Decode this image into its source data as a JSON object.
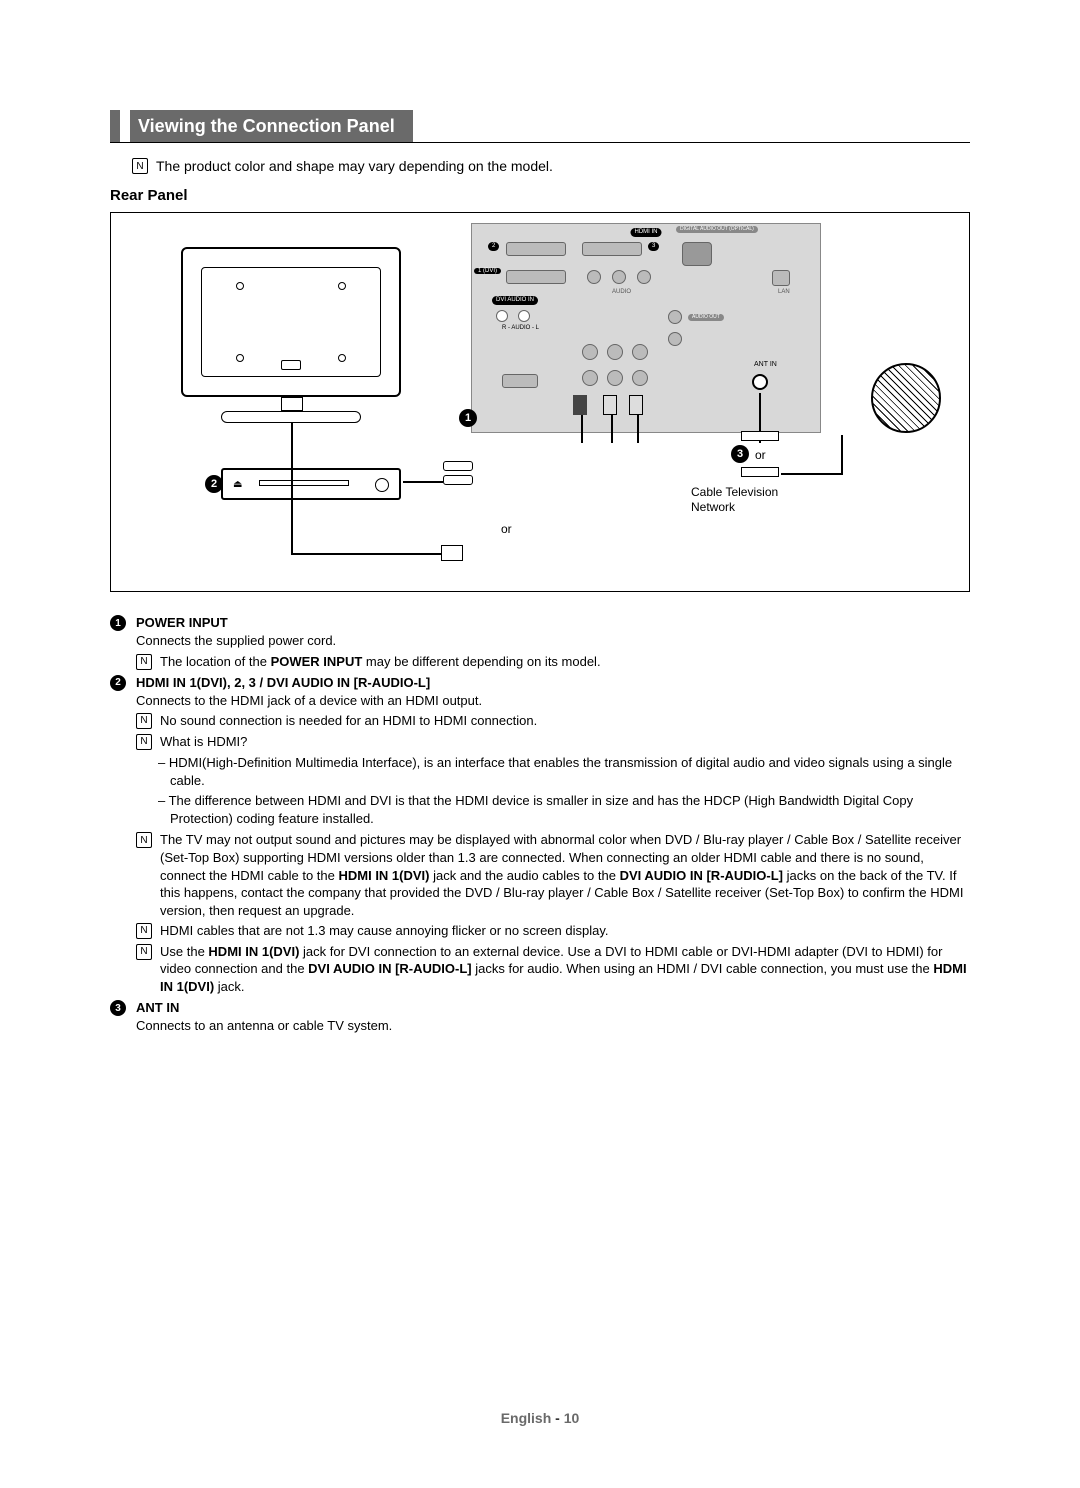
{
  "title": "Viewing the Connection Panel",
  "top_note_icon": "N",
  "top_note": "The product color and shape may vary depending on the model.",
  "subheading": "Rear Panel",
  "diagram": {
    "labels": {
      "hdmi_in": "HDMI IN",
      "dvi_audio_in": "DVI AUDIO IN",
      "digital_audio": "DIGITAL AUDIO OUT (OPTICAL)",
      "lan": "LAN",
      "ant_in": "ANT IN",
      "audio": "AUDIO",
      "audio_out": "AUDIO OUT",
      "ex_link": "EX-LINK",
      "port1": "1 (DVI)",
      "port2": "2",
      "port3": "3"
    },
    "cable_tv_line1": "Cable Television",
    "cable_tv_line2": "Network",
    "or": "or",
    "circles": {
      "one": "1",
      "two": "2",
      "three": "3"
    }
  },
  "items": [
    {
      "num": "1",
      "title": "POWER INPUT",
      "desc": "Connects the supplied power cord.",
      "notes": [
        {
          "icon": "N",
          "parts": [
            "The location of the ",
            {
              "b": "POWER INPUT"
            },
            " may be different depending on its model."
          ]
        }
      ]
    },
    {
      "num": "2",
      "title": "HDMI IN 1(DVI), 2, 3 / DVI AUDIO IN [R-AUDIO-L]",
      "desc": "Connects to the HDMI jack of a device with an HDMI output.",
      "notes": [
        {
          "icon": "N",
          "parts": [
            "No sound connection is needed for an HDMI to HDMI connection."
          ]
        },
        {
          "icon": "N",
          "parts": [
            "What is HDMI?"
          ],
          "bullets": [
            "HDMI(High-Definition Multimedia Interface), is an interface that enables the transmission of digital audio and video signals using a single cable.",
            "The difference between HDMI and DVI is that the HDMI device is smaller in size and has the HDCP (High Bandwidth Digital Copy Protection) coding feature installed."
          ]
        },
        {
          "icon": "N",
          "parts": [
            "The TV may not output sound and pictures may be displayed with abnormal color when DVD / Blu-ray player / Cable Box / Satellite receiver (Set-Top Box) supporting HDMI versions older than 1.3 are connected. When connecting an older HDMI cable and there is no sound, connect the HDMI cable to the ",
            {
              "b": "HDMI IN 1(DVI)"
            },
            " jack and the audio cables to the ",
            {
              "b": "DVI AUDIO IN [R-AUDIO-L]"
            },
            " jacks on the back of the TV. If this happens, contact the company that provided the DVD / Blu-ray player / Cable Box / Satellite receiver (Set-Top Box) to confirm the HDMI version, then request an upgrade."
          ]
        },
        {
          "icon": "N",
          "parts": [
            "HDMI cables that are not 1.3 may cause annoying flicker or no screen display."
          ]
        },
        {
          "icon": "N",
          "parts": [
            "Use the ",
            {
              "b": "HDMI IN 1(DVI)"
            },
            " jack for DVI connection to an external device. Use a DVI to HDMI cable or DVI-HDMI adapter (DVI to HDMI) for video connection and the ",
            {
              "b": "DVI AUDIO IN [R-AUDIO-L]"
            },
            " jacks for audio. When using an HDMI / DVI cable connection, you must use the ",
            {
              "b": "HDMI IN 1(DVI)"
            },
            " jack."
          ]
        }
      ]
    },
    {
      "num": "3",
      "title": "ANT IN",
      "desc": "Connects to an antenna or cable TV system."
    }
  ],
  "footer": {
    "lang": "English",
    "sep": " - ",
    "page": "10"
  },
  "colors": {
    "accent_gray": "#6a6a6a",
    "panel_gray": "#d8d8d8",
    "text": "#000000",
    "background": "#ffffff"
  }
}
